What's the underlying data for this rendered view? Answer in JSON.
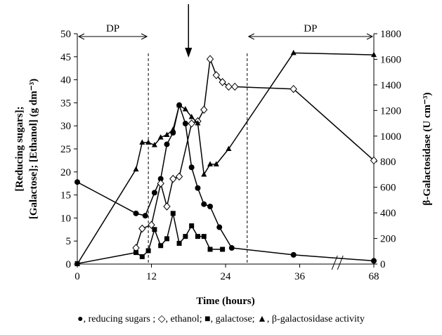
{
  "chart_data": {
    "type": "line",
    "xlabel": "Time (hours)",
    "ylabel_left_lines": [
      "[Reducing sugars];",
      "[Galactose]; [Ethanol] (g dm⁻³)"
    ],
    "ylabel_right": "β-Galactosidase (U cm⁻³)",
    "x_ticks": [
      "0",
      "12",
      "24",
      "36",
      "68"
    ],
    "x_tick_values": [
      0,
      12,
      24,
      36,
      48
    ],
    "x_range": [
      0,
      48
    ],
    "x_break_between": [
      "36",
      "68"
    ],
    "y_left_ticks": [
      "0",
      "5",
      "10",
      "15",
      "20",
      "25",
      "30",
      "35",
      "40",
      "45",
      "50"
    ],
    "y_left_range": [
      0,
      50
    ],
    "y_right_ticks": [
      "0",
      "200",
      "400",
      "600",
      "800",
      "1000",
      "1200",
      "1400",
      "1600",
      "1800"
    ],
    "y_right_range": [
      0,
      1800
    ],
    "dashed_lines_x": [
      11.5,
      27.5
    ],
    "annotations": [
      {
        "text": "DP",
        "x_from": 0,
        "x_to": 11.5
      },
      {
        "text": "DP",
        "x_from": 27.5,
        "x_to": 48
      }
    ],
    "feeding_arrow_x": 18,
    "series": [
      {
        "name": "reducing sugars",
        "marker": "circle",
        "axis": "left",
        "x": [
          0,
          9.5,
          11,
          12.5,
          13.5,
          14.5,
          15.5,
          16.5,
          17.5,
          18.5,
          19.5,
          20.5,
          21.5,
          23,
          25,
          35,
          48
        ],
        "y": [
          17.8,
          11,
          10.5,
          15.5,
          18.5,
          26,
          28.5,
          34.5,
          30.5,
          21,
          16.5,
          13,
          12.5,
          8,
          3.5,
          2,
          0.7
        ]
      },
      {
        "name": "ethanol",
        "marker": "diamond",
        "axis": "left",
        "x": [
          9.5,
          10.5,
          12,
          13.5,
          14.5,
          15.5,
          16.5,
          18.5,
          19.5,
          20.5,
          21.5,
          22.5,
          23.5,
          24.5,
          25.5,
          35,
          48
        ],
        "y": [
          3.5,
          7.7,
          8.5,
          17.5,
          12.5,
          18.5,
          19,
          30.5,
          31,
          33.5,
          44.5,
          41,
          39.5,
          38.5,
          38.5,
          38,
          22.5
        ]
      },
      {
        "name": "galactose",
        "marker": "square",
        "axis": "left",
        "x": [
          0,
          9.5,
          10.5,
          11.5,
          12.5,
          13.5,
          14.5,
          15.5,
          16.5,
          17.5,
          18.5,
          19.5,
          20.5,
          21.5,
          23.5
        ],
        "y": [
          0.1,
          2.5,
          1.6,
          2.9,
          7.5,
          4,
          5.5,
          11,
          4.5,
          6,
          8.3,
          6,
          6,
          3.2,
          3.2
        ]
      },
      {
        "name": "β-galactosidase activity",
        "marker": "triangle",
        "axis": "right",
        "x": [
          0,
          9.5,
          10.5,
          11.5,
          12.5,
          13.5,
          14.5,
          15.5,
          16.5,
          17.5,
          18.5,
          19.5,
          20.5,
          21.5,
          22.5,
          24.5,
          35,
          48
        ],
        "y": [
          0,
          740,
          950,
          950,
          930,
          990,
          1010,
          1050,
          1240,
          1210,
          1150,
          1100,
          700,
          780,
          780,
          900,
          1650,
          1635
        ]
      }
    ]
  },
  "legend_text": "●, reducing sugars ; ◇, ethanol;  ■, galactose; ▲, β-galactosidase activity"
}
